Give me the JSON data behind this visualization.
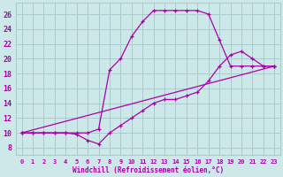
{
  "xlabel": "Windchill (Refroidissement éolien,°C)",
  "bg_color": "#cce8e8",
  "grid_color": "#aacccc",
  "line_color": "#aa00aa",
  "xlim": [
    -0.5,
    23.5
  ],
  "ylim": [
    7,
    27.5
  ],
  "xticks": [
    0,
    1,
    2,
    3,
    4,
    5,
    6,
    7,
    8,
    9,
    10,
    11,
    12,
    13,
    14,
    15,
    16,
    17,
    18,
    19,
    20,
    21,
    22,
    23
  ],
  "yticks": [
    8,
    10,
    12,
    14,
    16,
    18,
    20,
    22,
    24,
    26
  ],
  "line1_x": [
    0,
    1,
    2,
    3,
    4,
    5,
    6,
    7,
    8,
    9,
    10,
    11,
    12,
    13,
    14,
    15,
    16,
    17,
    18,
    19,
    20,
    21,
    22,
    23
  ],
  "line1_y": [
    10,
    10,
    10,
    10,
    10,
    10,
    10,
    10.5,
    18.5,
    20,
    23,
    25,
    26.5,
    26.5,
    26.5,
    26.5,
    26.5,
    26,
    22.5,
    19,
    19,
    19,
    19,
    19
  ],
  "line2_x": [
    0,
    1,
    2,
    3,
    4,
    5,
    6,
    7,
    8,
    9,
    10,
    11,
    12,
    13,
    14,
    15,
    16,
    17,
    18,
    19,
    20,
    21,
    22,
    23
  ],
  "line2_y": [
    10,
    10,
    10,
    10,
    10,
    9.8,
    9,
    8.5,
    10,
    11,
    12,
    13,
    14,
    14.5,
    14.5,
    15,
    15.5,
    17,
    19,
    20.5,
    21,
    20,
    19,
    19
  ],
  "line3_x": [
    0,
    23
  ],
  "line3_y": [
    10,
    19
  ]
}
